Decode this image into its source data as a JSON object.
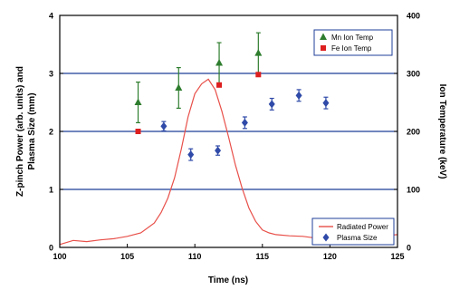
{
  "colors": {
    "grid": "#1f3f99",
    "mn_ion_temp": "#2e7d2e",
    "fe_ion_temp": "#dd1f1f",
    "radiated_power": "#e8504a",
    "plasma_size": "#2f4aa8",
    "axis": "#000000"
  },
  "chart_data": {
    "type": "scatter",
    "xlabel": "Time (ns)",
    "ylabel_left_line1": "Z-pinch Power (arb. units) and",
    "ylabel_left_line2": "Plasma Size (mm)",
    "ylabel_right": "Ion Temperature (keV)",
    "xlim": [
      100,
      125
    ],
    "ylim_left": [
      0,
      4
    ],
    "ylim_right": [
      0,
      400
    ],
    "x_ticks": [
      "100",
      "105",
      "110",
      "115",
      "120",
      "125"
    ],
    "y_ticks_left": [
      "0",
      "1",
      "2",
      "3",
      "4"
    ],
    "y_ticks_right": [
      "0",
      "100",
      "200",
      "300",
      "400"
    ],
    "gridlines_left": [
      1,
      2,
      3
    ],
    "series": [
      {
        "name": "Mn Ion Temp",
        "axis": "right",
        "marker": "triangle",
        "x": [
          105.8,
          108.8,
          111.8,
          114.7
        ],
        "y": [
          250,
          275,
          318,
          335
        ],
        "err": [
          35,
          35,
          35,
          35
        ]
      },
      {
        "name": "Fe Ion Temp",
        "axis": "right",
        "marker": "square",
        "x": [
          105.8,
          111.8,
          114.7
        ],
        "y": [
          200,
          280,
          298
        ]
      },
      {
        "name": "Plasma Size",
        "axis": "left",
        "marker": "diamond",
        "x": [
          107.7,
          109.7,
          111.7,
          113.7,
          115.7,
          117.7,
          119.7
        ],
        "y": [
          2.09,
          1.6,
          1.67,
          2.15,
          2.47,
          2.62,
          2.49
        ],
        "err": [
          0.08,
          0.1,
          0.08,
          0.1,
          0.1,
          0.1,
          0.1
        ]
      },
      {
        "name": "Radiated Power",
        "axis": "left",
        "marker": "line",
        "x": [
          100,
          101,
          102,
          103,
          104,
          105,
          106,
          107,
          107.5,
          108,
          108.5,
          109,
          109.5,
          110,
          110.5,
          111,
          111.5,
          112,
          112.5,
          113,
          113.5,
          114,
          114.5,
          115,
          115.5,
          116,
          117,
          118,
          119,
          120,
          121,
          122,
          123,
          124,
          125
        ],
        "y": [
          0.05,
          0.12,
          0.1,
          0.13,
          0.15,
          0.19,
          0.25,
          0.42,
          0.6,
          0.85,
          1.2,
          1.7,
          2.25,
          2.65,
          2.82,
          2.9,
          2.72,
          2.35,
          1.9,
          1.42,
          1.02,
          0.68,
          0.45,
          0.3,
          0.25,
          0.22,
          0.2,
          0.19,
          0.16,
          0.18,
          0.15,
          0.2,
          0.24,
          0.2,
          0.22
        ]
      }
    ],
    "legends": [
      {
        "position": "top-right",
        "entries": [
          "Mn Ion Temp",
          "Fe Ion Temp"
        ]
      },
      {
        "position": "bottom-right",
        "entries": [
          "Radiated Power",
          "Plasma Size"
        ]
      }
    ]
  }
}
